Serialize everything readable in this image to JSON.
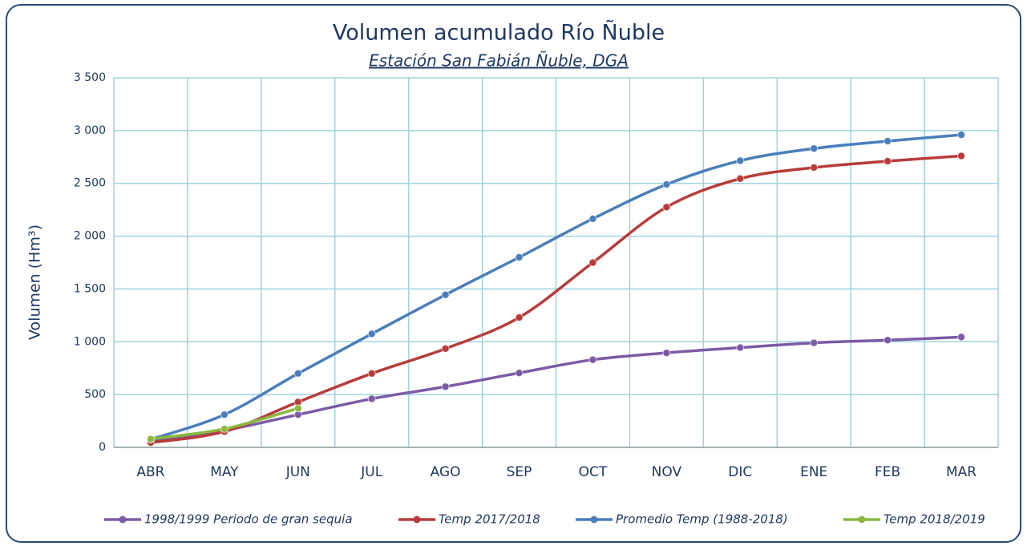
{
  "chart_data": {
    "type": "line",
    "title": "Volumen acumulado Río Ñuble",
    "subtitle": "Estación San Fabián Ñuble, DGA",
    "y_label": "Volumen (Hm³)",
    "categories": [
      "ABR",
      "MAY",
      "JUN",
      "JUL",
      "AGO",
      "SEP",
      "OCT",
      "NOV",
      "DIC",
      "ENE",
      "FEB",
      "MAR"
    ],
    "series": [
      {
        "name": "1998/1999 Periodo de gran sequia",
        "color": "#7b5ba6",
        "values": [
          55,
          160,
          310,
          460,
          575,
          705,
          830,
          895,
          945,
          990,
          1015,
          1045
        ]
      },
      {
        "name": "Temp 2017/2018",
        "color": "#b83c3a",
        "values": [
          45,
          150,
          430,
          700,
          935,
          1230,
          1750,
          2275,
          2545,
          2650,
          2710,
          2760
        ]
      },
      {
        "name": "Promedio Temp (1988-2018)",
        "color": "#4a7ebb",
        "values": [
          75,
          310,
          700,
          1075,
          1445,
          1800,
          2165,
          2490,
          2715,
          2830,
          2900,
          2960
        ]
      },
      {
        "name": "Temp 2018/2019",
        "color": "#8cb83f",
        "values": [
          80,
          175,
          370,
          null,
          null,
          null,
          null,
          null,
          null,
          null,
          null,
          null
        ]
      }
    ],
    "ylim": [
      0,
      3500
    ],
    "yticks": [
      0,
      500,
      {
        "value": 1000,
        "label": "1 000"
      },
      {
        "value": 1500,
        "label": "1 500"
      },
      {
        "value": 2000,
        "label": "2 000"
      },
      {
        "value": 2500,
        "label": "2 500"
      },
      {
        "value": 3000,
        "label": "3 000"
      },
      {
        "value": 3500,
        "label": "3 500"
      }
    ],
    "grid": true,
    "smooth": true,
    "legend": "bottom"
  }
}
